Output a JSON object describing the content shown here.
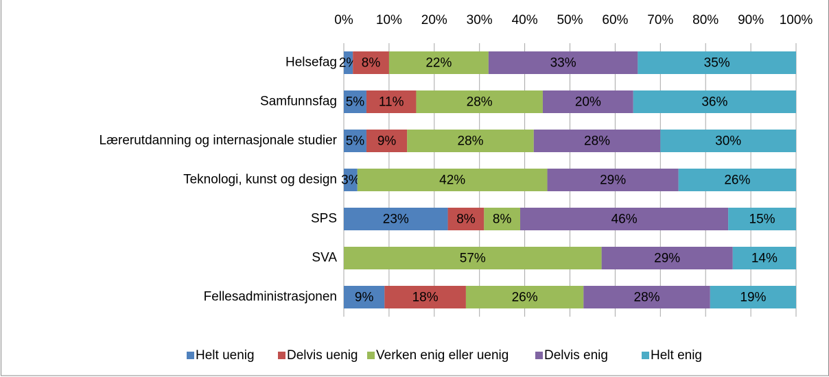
{
  "chart_data": {
    "type": "stacked-bar-horizontal",
    "categories": [
      "Helsefag",
      "Samfunnsfag",
      "Lærerutdanning og internasjonale studier",
      "Teknologi, kunst og design",
      "SPS",
      "SVA",
      "Fellesadministrasjonen"
    ],
    "series": [
      {
        "name": "Helt uenig",
        "color": "#4f81bd",
        "values": [
          2,
          5,
          5,
          3,
          23,
          null,
          9
        ],
        "value_labels": [
          "2%",
          "5%",
          "5%",
          "3%",
          "23%",
          null,
          "9%"
        ]
      },
      {
        "name": "Delvis uenig",
        "color": "#c0504d",
        "values": [
          8,
          11,
          9,
          null,
          8,
          null,
          18
        ],
        "value_labels": [
          "8%",
          "11%",
          "9%",
          null,
          "8%",
          null,
          "18%"
        ]
      },
      {
        "name": "Verken enig eller uenig",
        "color": "#9bbb59",
        "values": [
          22,
          28,
          28,
          42,
          8,
          57,
          26
        ],
        "value_labels": [
          "22%",
          "28%",
          "28%",
          "42%",
          "8%",
          "57%",
          "26%"
        ]
      },
      {
        "name": "Delvis enig",
        "color": "#8064a2",
        "values": [
          33,
          20,
          28,
          29,
          46,
          29,
          28
        ],
        "value_labels": [
          "33%",
          "20%",
          "28%",
          "29%",
          "46%",
          "29%",
          "28%"
        ]
      },
      {
        "name": "Helt enig",
        "color": "#4bacc6",
        "values": [
          35,
          36,
          30,
          26,
          15,
          14,
          19
        ],
        "value_labels": [
          "35%",
          "36%",
          "30%",
          "26%",
          "15%",
          "14%",
          "19%"
        ]
      }
    ],
    "xlim": [
      0,
      100
    ],
    "xticks": [
      {
        "value": 0,
        "label": "0%"
      },
      {
        "value": 10,
        "label": "10%"
      },
      {
        "value": 20,
        "label": "20%"
      },
      {
        "value": 30,
        "label": "30%"
      },
      {
        "value": 40,
        "label": "40%"
      },
      {
        "value": 50,
        "label": "50%"
      },
      {
        "value": 60,
        "label": "60%"
      },
      {
        "value": 70,
        "label": "70%"
      },
      {
        "value": 80,
        "label": "80%"
      },
      {
        "value": 90,
        "label": "90%"
      },
      {
        "value": 100,
        "label": "100%"
      }
    ],
    "grid": true,
    "legend": "bottom"
  }
}
